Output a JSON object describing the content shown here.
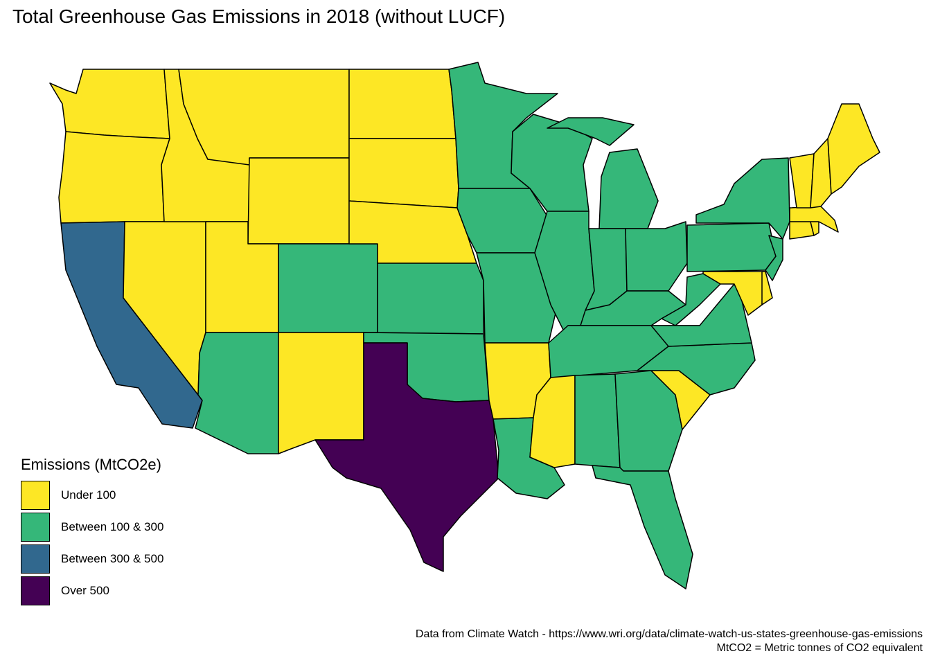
{
  "title": "Total Greenhouse Gas Emissions in 2018 (without LUCF)",
  "legend": {
    "title": "Emissions (MtCO2e)",
    "items": [
      {
        "key": "under100",
        "label": "Under 100",
        "color": "#FDE725"
      },
      {
        "key": "b100_300",
        "label": "Between 100 & 300",
        "color": "#35B779"
      },
      {
        "key": "b300_500",
        "label": "Between 300 & 500",
        "color": "#31688E"
      },
      {
        "key": "over500",
        "label": "Over 500",
        "color": "#440154"
      }
    ]
  },
  "caption": {
    "line1": "Data from Climate Watch - https://www.wri.org/data/climate-watch-us-states-greenhouse-gas-emissions",
    "line2": "MtCO2 = Metric tonnes of CO2 equivalent"
  },
  "states": {
    "WA": "under100",
    "OR": "under100",
    "CA": "b300_500",
    "NV": "under100",
    "ID": "under100",
    "MT": "under100",
    "WY": "under100",
    "UT": "under100",
    "AZ": "b100_300",
    "CO": "b100_300",
    "NM": "under100",
    "ND": "under100",
    "SD": "under100",
    "NE": "under100",
    "KS": "b100_300",
    "OK": "b100_300",
    "TX": "over500",
    "MN": "b100_300",
    "IA": "b100_300",
    "MO": "b100_300",
    "AR": "under100",
    "LA": "b100_300",
    "WI": "b100_300",
    "IL": "b100_300",
    "MI": "b100_300",
    "IN": "b100_300",
    "OH": "b100_300",
    "KY": "b100_300",
    "TN": "b100_300",
    "MS": "under100",
    "AL": "b100_300",
    "GA": "b100_300",
    "FL": "b100_300",
    "SC": "under100",
    "NC": "b100_300",
    "VA": "b100_300",
    "WV": "b100_300",
    "PA": "b100_300",
    "NY": "b100_300",
    "NJ": "b100_300",
    "DE": "under100",
    "MD": "under100",
    "CT": "under100",
    "RI": "under100",
    "MA": "under100",
    "VT": "under100",
    "NH": "under100",
    "ME": "under100"
  }
}
